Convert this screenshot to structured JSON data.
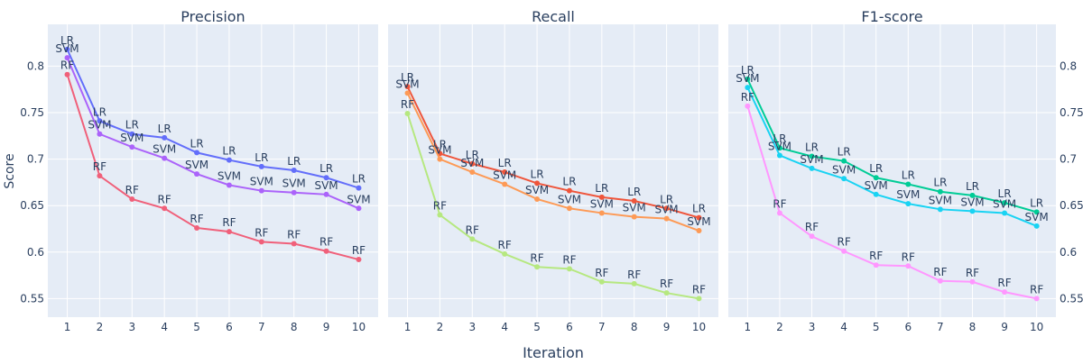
{
  "chart_data": {
    "type": "line",
    "xlabel": "Iteration",
    "ylabel": "Score",
    "x": [
      1,
      2,
      3,
      4,
      5,
      6,
      7,
      8,
      9,
      10
    ],
    "ylim": [
      0.53,
      0.845
    ],
    "yticks": [
      0.55,
      0.6,
      0.65,
      0.7,
      0.75,
      0.8
    ],
    "ytick_labels": [
      "0.55",
      "0.6",
      "0.65",
      "0.7",
      "0.75",
      "0.8"
    ],
    "xticks": [
      1,
      2,
      3,
      4,
      5,
      6,
      7,
      8,
      9,
      10
    ],
    "xtick_labels": [
      "1",
      "2",
      "3",
      "4",
      "5",
      "6",
      "7",
      "8",
      "9",
      "10"
    ],
    "grid": true,
    "background": "#e5ecf6",
    "panels": [
      {
        "title": "Precision",
        "series": [
          {
            "name": "LR",
            "color": "#636efa",
            "values": [
              0.818,
              0.741,
              0.727,
              0.723,
              0.707,
              0.699,
              0.692,
              0.688,
              0.68,
              0.669
            ]
          },
          {
            "name": "SVM",
            "color": "#ab63fa",
            "values": [
              0.809,
              0.727,
              0.713,
              0.701,
              0.684,
              0.672,
              0.666,
              0.664,
              0.662,
              0.647
            ]
          },
          {
            "name": "RF",
            "color": "#ef553b",
            "line_color": "#f0607a",
            "values": [
              0.791,
              0.682,
              0.657,
              0.647,
              0.626,
              0.622,
              0.611,
              0.609,
              0.601,
              0.592
            ]
          }
        ],
        "point_labels": {
          "LR": "LR",
          "SVM": "SVM",
          "RF": "RF"
        }
      },
      {
        "title": "Recall",
        "series": [
          {
            "name": "LR",
            "color": "#ef553b",
            "values": [
              0.778,
              0.706,
              0.695,
              0.686,
              0.674,
              0.666,
              0.659,
              0.655,
              0.647,
              0.637
            ]
          },
          {
            "name": "SVM",
            "color": "#fd9a56",
            "values": [
              0.771,
              0.7,
              0.686,
              0.673,
              0.657,
              0.647,
              0.642,
              0.638,
              0.636,
              0.623
            ]
          },
          {
            "name": "RF",
            "color": "#b6e880",
            "values": [
              0.749,
              0.64,
              0.614,
              0.598,
              0.584,
              0.582,
              0.568,
              0.566,
              0.556,
              0.55
            ]
          }
        ],
        "point_labels": {
          "LR": "LR",
          "SVM": "SVM",
          "RF": "RF"
        }
      },
      {
        "title": "F1-score",
        "series": [
          {
            "name": "LR",
            "color": "#00cc96",
            "values": [
              0.786,
              0.712,
              0.703,
              0.698,
              0.68,
              0.673,
              0.665,
              0.661,
              0.653,
              0.643
            ]
          },
          {
            "name": "SVM",
            "color": "#19d3f3",
            "values": [
              0.777,
              0.704,
              0.69,
              0.679,
              0.662,
              0.652,
              0.646,
              0.644,
              0.642,
              0.628
            ]
          },
          {
            "name": "RF",
            "color": "#ff97ff",
            "values": [
              0.757,
              0.642,
              0.617,
              0.601,
              0.586,
              0.585,
              0.569,
              0.568,
              0.557,
              0.55
            ]
          }
        ],
        "point_labels": {
          "LR": "LR",
          "SVM": "SVM",
          "RF": "RF"
        }
      }
    ]
  }
}
